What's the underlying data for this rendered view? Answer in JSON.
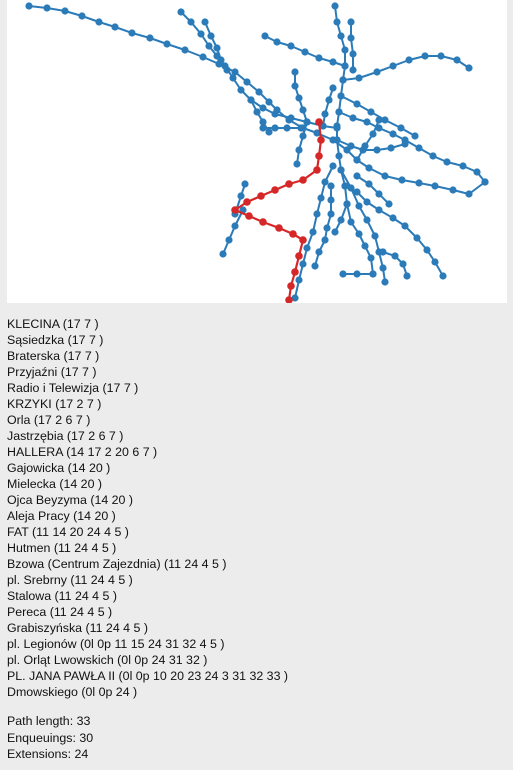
{
  "colors": {
    "network": "#2b7bb9",
    "path": "#d62728",
    "panel_background": "#ffffff",
    "page_background": "#ececec"
  },
  "path_stops": [
    "KLECINA (17 7 )",
    "Sąsiedzka (17 7 )",
    "Braterska (17 7 )",
    "Przyjaźni (17 7 )",
    "Radio i Telewizja (17 7 )",
    "KRZYKI (17 2 7 )",
    "Orla (17 2 6 7 )",
    "Jastrzębia (17 2 6 7 )",
    "HALLERA (14 17 2 20 6 7 )",
    "Gajowicka (14 20 )",
    "Mielecka (14 20 )",
    "Ojca Beyzyma (14 20 )",
    "Aleja Pracy (14 20 )",
    "FAT (11 14 20 24 4 5 )",
    "Hutmen (11 24 4 5 )",
    "Bzowa (Centrum Zajezdnia) (11 24 4 5 )",
    "pl. Srebrny (11 24 4 5 )",
    "Stalowa (11 24 4 5 )",
    "Pereca (11 24 4 5 )",
    "Grabiszyńska (11 24 4 5 )",
    "pl. Legionów (0l 0p 11 15 24 31 32 4 5 )",
    "pl. Orląt Lwowskich (0l 0p 24 31 32 )",
    "PL. JANA PAWŁA II (0l 0p 10 20 23 24 3 31 32 33 )",
    "Dmowskiego (0l 0p 24 )"
  ],
  "stats": {
    "path_length": "Path length: 33",
    "enqueuings": "Enqueuings: 30",
    "extensions": "Extensions: 24"
  }
}
